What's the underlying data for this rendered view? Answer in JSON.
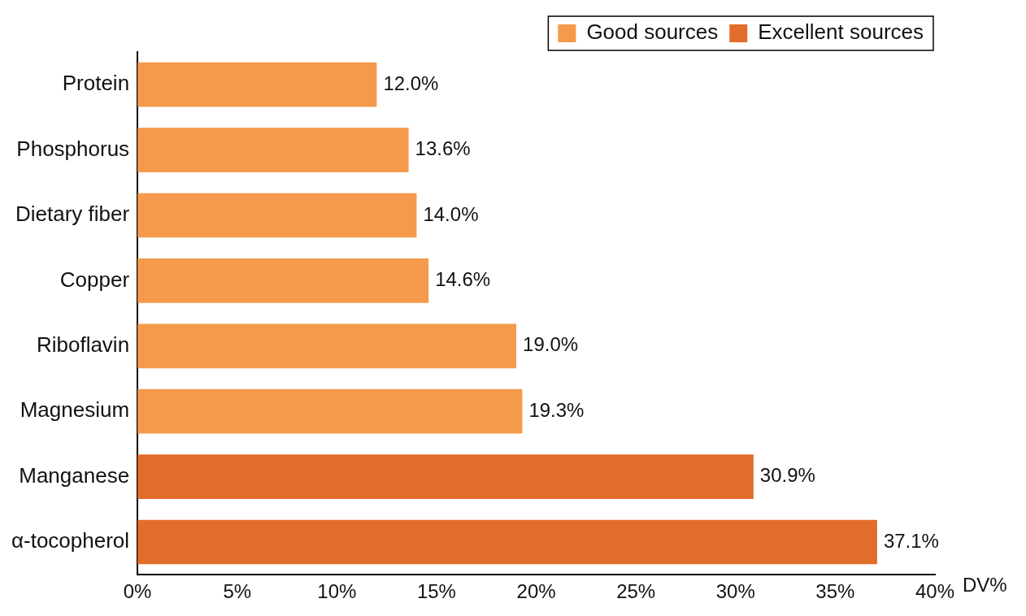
{
  "chart_data": {
    "type": "bar",
    "orientation": "horizontal",
    "categories": [
      "Protein",
      "Phosphorus",
      "Dietary fiber",
      "Copper",
      "Riboflavin",
      "Magnesium",
      "Manganese",
      "α-tocopherol"
    ],
    "series": [
      {
        "name": "Good sources",
        "color": "#f59a4c",
        "values": [
          12.0,
          13.6,
          14.0,
          14.6,
          19.0,
          19.3,
          null,
          null
        ],
        "value_labels": [
          "12.0%",
          "13.6%",
          "14.0%",
          "14.6%",
          "19.0%",
          "19.3%",
          null,
          null
        ]
      },
      {
        "name": "Excellent sources",
        "color": "#e26c29",
        "values": [
          null,
          null,
          null,
          null,
          null,
          null,
          30.9,
          37.1
        ],
        "value_labels": [
          null,
          null,
          null,
          null,
          null,
          null,
          "30.9%",
          "37.1%"
        ]
      }
    ],
    "xlabel": "DV%",
    "xlim": [
      0,
      40
    ],
    "xticks": [
      {
        "value": 0,
        "label": "0%"
      },
      {
        "value": 5,
        "label": "5%"
      },
      {
        "value": 10,
        "label": "10%"
      },
      {
        "value": 15,
        "label": "15%"
      },
      {
        "value": 20,
        "label": "20%"
      },
      {
        "value": 25,
        "label": "25%"
      },
      {
        "value": 30,
        "label": "30%"
      },
      {
        "value": 35,
        "label": "35%"
      },
      {
        "value": 40,
        "label": "40%"
      }
    ],
    "grid": false,
    "legend": "top right",
    "data_labels": true
  }
}
